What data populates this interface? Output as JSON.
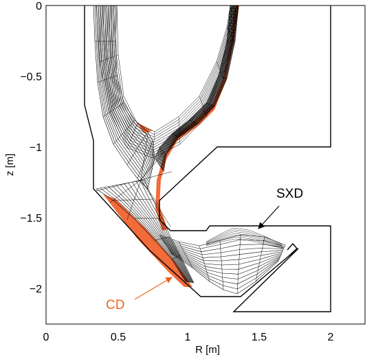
{
  "figure": {
    "xlabel": "R [m]",
    "ylabel": "z [m]",
    "xlim": [
      0,
      2.3
    ],
    "ylim": [
      -2.25,
      0
    ],
    "xticks": [
      "0",
      "0.5",
      "1",
      "1.5",
      "2"
    ],
    "yticks": [
      "0",
      "−0.5",
      "−1",
      "−1.5",
      "−2"
    ],
    "annotations": {
      "sxd": "SXD",
      "cd": "CD"
    },
    "colors": {
      "wall": "#000000",
      "mesh": "#000000",
      "target": "#f26b3a",
      "annotation_cd": "#e8681f",
      "background": "#ffffff"
    }
  }
}
